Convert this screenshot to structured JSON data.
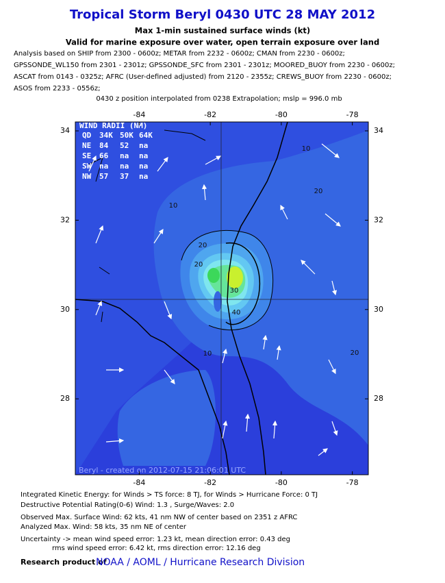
{
  "header": {
    "title": "Tropical Storm Beryl 0430 UTC 28 MAY 2012",
    "subtitle": "Max 1-min sustained surface winds (kt)",
    "note": "Valid for marine exposure over water, open terrain exposure over land"
  },
  "analysis": [
    "Analysis based on SHIP from 2300 - 0600z; METAR from 2232 - 0600z; CMAN from 2230 - 0600z;",
    "GPSSONDE_WL150 from 2301 - 2301z; GPSSONDE_SFC from 2301 - 2301z; MOORED_BUOY from 2230 - 0600z;",
    "ASCAT from 0143 - 0325z; AFRC (User-defined adjusted) from 2120 - 2355z; CREWS_BUOY from 2230 - 0600z;",
    "ASOS from 2233 - 0556z;"
  ],
  "position_note": "0430 z position interpolated from 0238 Extrapolation; mslp = 996.0 mb",
  "map": {
    "xlim": [
      -85.8,
      -77.55
    ],
    "ylim": [
      26.3,
      34.2
    ],
    "xticks": [
      -84,
      -82,
      -80,
      -78
    ],
    "yticks": [
      28,
      30,
      32,
      34
    ],
    "contour_labels": [
      10,
      20,
      10,
      20,
      20,
      30,
      40,
      20,
      10
    ],
    "credit": "Beryl - created on 2012-07-15 21:06:01 UTC"
  },
  "wind_radii": {
    "title": "WIND RADII (NM)",
    "header": [
      "QD",
      "34K",
      "50K",
      "64K"
    ],
    "rows": [
      [
        "NE",
        84,
        52,
        "na"
      ],
      [
        "SE",
        66,
        "na",
        "na"
      ],
      [
        "SW",
        "na",
        "na",
        "na"
      ],
      [
        "NW",
        57,
        37,
        "na"
      ]
    ]
  },
  "footer": {
    "lines": [
      "Integrated Kinetic Energy: for Winds > TS force: 8 TJ, for Winds > Hurricane Force: 0 TJ",
      "Destructive Potential Rating(0-6)   Wind: 1.3 , Surge/Waves: 2.0",
      "Observed Max. Surface Wind: 62 kts, 41 nm NW of center based on 2351 z AFRC",
      "Analyzed Max. Wind: 58 kts, 35 nm  NE of center",
      "Uncertainty -> mean wind speed error: 1.23 kt, mean direction error: 0.43 deg",
      "rms wind speed error: 6.42 kt, rms direction error: 12.16 deg"
    ],
    "research": "Research product of",
    "link": "NOAA / AOML / Hurricane Research Division"
  }
}
